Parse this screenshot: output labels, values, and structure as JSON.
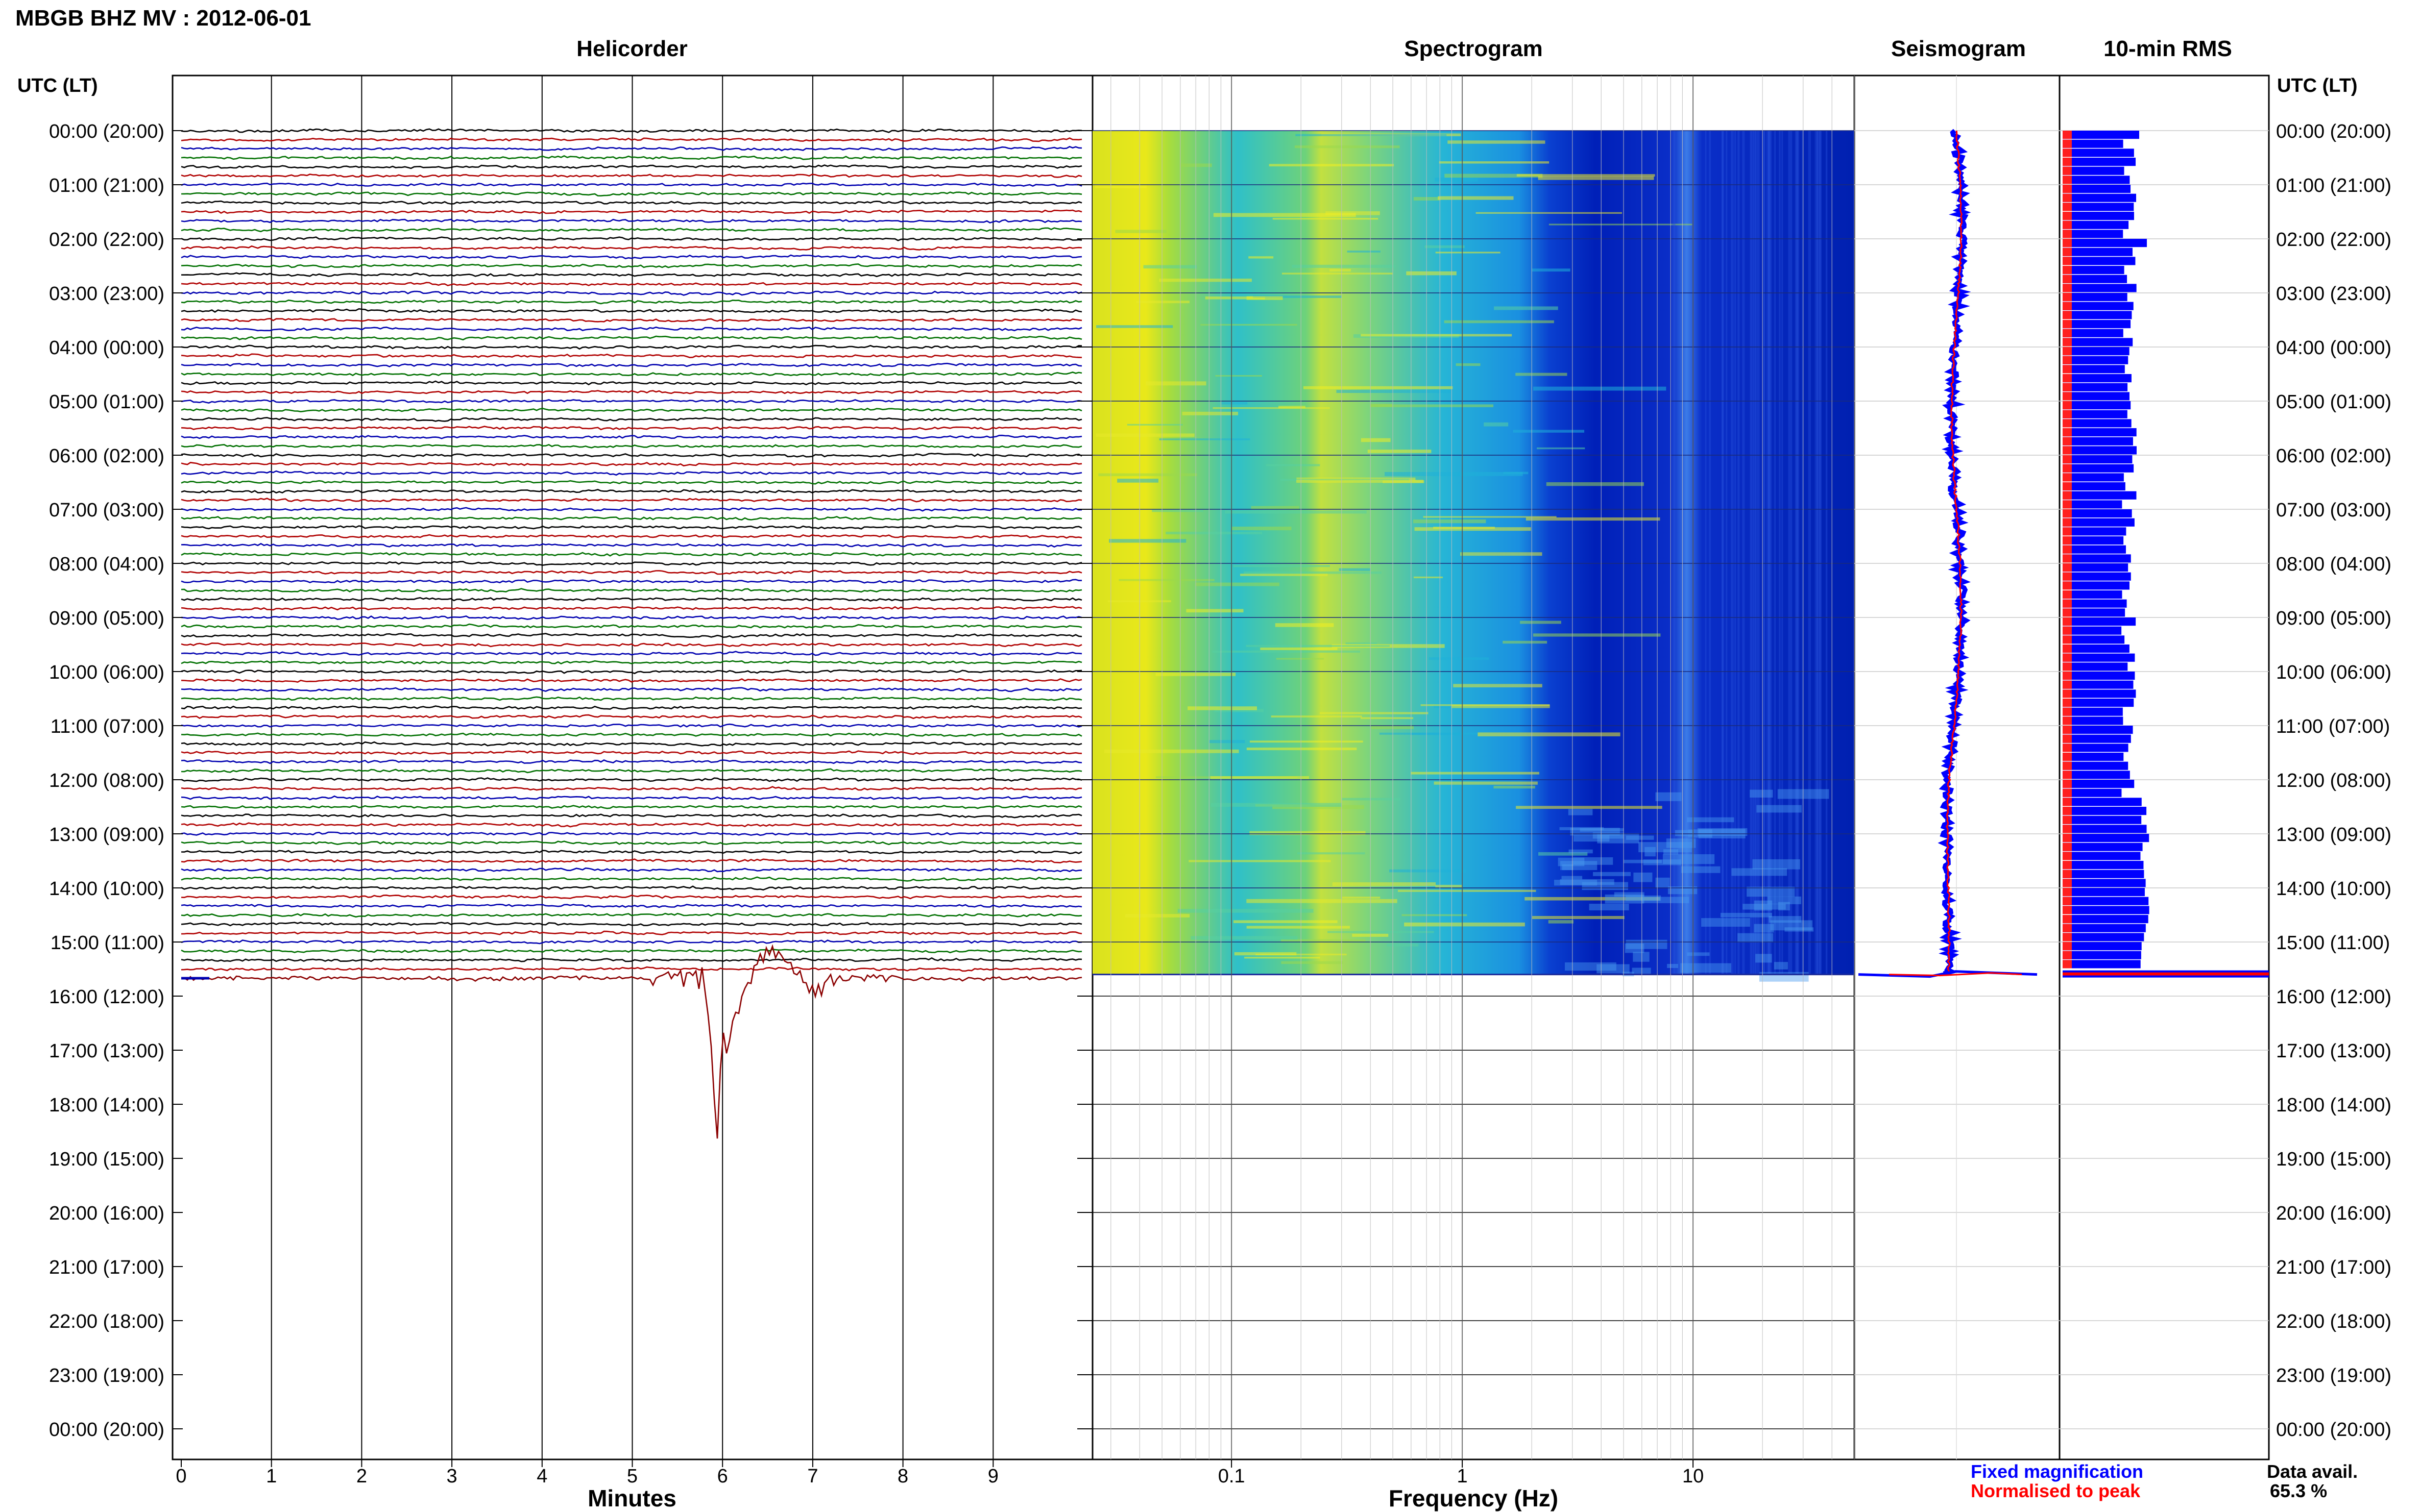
{
  "chart_data": {
    "type": "multi-panel-seismic",
    "title": "MBGB BHZ MV : 2012-06-01",
    "time_axis": {
      "label": "UTC (LT)",
      "ticks": [
        "00:00 (20:00)",
        "01:00 (21:00)",
        "02:00 (22:00)",
        "03:00 (23:00)",
        "04:00 (00:00)",
        "05:00 (01:00)",
        "06:00 (02:00)",
        "07:00 (03:00)",
        "08:00 (04:00)",
        "09:00 (05:00)",
        "10:00 (06:00)",
        "11:00 (07:00)",
        "12:00 (08:00)",
        "13:00 (09:00)",
        "14:00 (10:00)",
        "15:00 (11:00)",
        "16:00 (12:00)",
        "17:00 (13:00)",
        "18:00 (14:00)",
        "19:00 (15:00)",
        "20:00 (16:00)",
        "21:00 (17:00)",
        "22:00 (18:00)",
        "23:00 (19:00)",
        "00:00 (20:00)"
      ],
      "data_end_hour": 15.6
    },
    "helicorder": {
      "title": "Helicorder",
      "xlabel": "Minutes",
      "xticks": [
        "0",
        "1",
        "2",
        "3",
        "4",
        "5",
        "6",
        "7",
        "8",
        "9"
      ],
      "xlim": [
        0,
        10
      ],
      "trace_colors": [
        "#000000",
        "#b00000",
        "#0000b0",
        "#007000"
      ],
      "event": {
        "start_minute": 5.8,
        "peak_minute": 6.0,
        "hour": 15.5
      }
    },
    "spectrogram": {
      "title": "Spectrogram",
      "xlabel": "Frequency (Hz)",
      "xticks": [
        "0.1",
        "1",
        "10"
      ],
      "xlim": [
        0.025,
        50
      ],
      "scale": "log"
    },
    "seismogram": {
      "title": "Seismogram",
      "legend": [
        {
          "label": "Fixed magnification",
          "color": "#0000ff"
        },
        {
          "label": "Normalised to peak",
          "color": "#ff0000"
        }
      ]
    },
    "rms": {
      "title": "10-min RMS",
      "data_avail_label": "Data avail.",
      "data_avail_value": "65.3 %"
    }
  }
}
